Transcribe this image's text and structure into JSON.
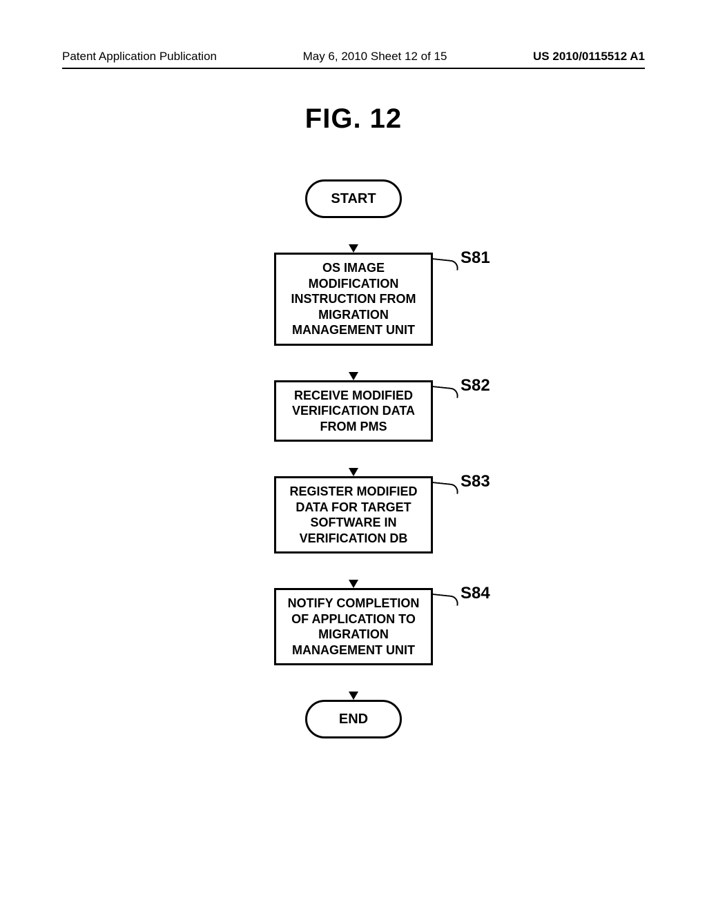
{
  "header": {
    "pub_type": "Patent Application Publication",
    "date_sheet": "May 6, 2010  Sheet 12 of 15",
    "pub_number": "US 2010/0115512 A1"
  },
  "figure_title": "FIG. 12",
  "flowchart": {
    "type": "flowchart",
    "background_color": "#ffffff",
    "border_color": "#000000",
    "border_width": 3,
    "font_family": "Arial",
    "terminator_fontsize": 20,
    "process_fontsize": 18,
    "label_fontsize": 24,
    "process_width": 230,
    "terminator_width": 140,
    "terminator_height": 56,
    "arrow_gap": 50,
    "nodes": [
      {
        "id": "start",
        "kind": "terminator",
        "text": "START"
      },
      {
        "id": "s81",
        "kind": "process",
        "label": "S81",
        "text": "OS IMAGE MODIFICATION INSTRUCTION FROM MIGRATION MANAGEMENT UNIT"
      },
      {
        "id": "s82",
        "kind": "process",
        "label": "S82",
        "text": "RECEIVE MODIFIED VERIFICATION DATA FROM PMS"
      },
      {
        "id": "s83",
        "kind": "process",
        "label": "S83",
        "text": "REGISTER MODIFIED DATA FOR TARGET SOFTWARE IN VERIFICATION DB"
      },
      {
        "id": "s84",
        "kind": "process",
        "label": "S84",
        "text": "NOTIFY COMPLETION OF APPLICATION TO MIGRATION MANAGEMENT UNIT"
      },
      {
        "id": "end",
        "kind": "terminator",
        "text": "END"
      }
    ],
    "edges": [
      {
        "from": "start",
        "to": "s81"
      },
      {
        "from": "s81",
        "to": "s82"
      },
      {
        "from": "s82",
        "to": "s83"
      },
      {
        "from": "s83",
        "to": "s84"
      },
      {
        "from": "s84",
        "to": "end"
      }
    ]
  }
}
